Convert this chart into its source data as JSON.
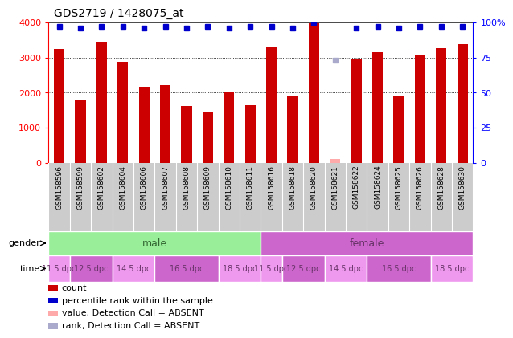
{
  "title": "GDS2719 / 1428075_at",
  "samples": [
    "GSM158596",
    "GSM158599",
    "GSM158602",
    "GSM158604",
    "GSM158606",
    "GSM158607",
    "GSM158608",
    "GSM158609",
    "GSM158610",
    "GSM158611",
    "GSM158616",
    "GSM158618",
    "GSM158620",
    "GSM158621",
    "GSM158622",
    "GSM158624",
    "GSM158625",
    "GSM158626",
    "GSM158628",
    "GSM158630"
  ],
  "bar_values": [
    3250,
    1800,
    3450,
    2870,
    2180,
    2210,
    1620,
    1430,
    2040,
    1640,
    3280,
    1930,
    3980,
    110,
    2940,
    3160,
    1900,
    3090,
    3270,
    3380
  ],
  "bar_absent": [
    false,
    false,
    false,
    false,
    false,
    false,
    false,
    false,
    false,
    false,
    false,
    false,
    false,
    true,
    false,
    false,
    false,
    false,
    false,
    false
  ],
  "percentile_values": [
    97,
    96,
    97,
    97,
    96,
    97,
    96,
    97,
    96,
    97,
    97,
    96,
    100,
    73,
    96,
    97,
    96,
    97,
    97,
    97
  ],
  "percentile_absent": [
    false,
    false,
    false,
    false,
    false,
    false,
    false,
    false,
    false,
    false,
    false,
    false,
    false,
    true,
    false,
    false,
    false,
    false,
    false,
    false
  ],
  "bar_color": "#cc0000",
  "bar_absent_color": "#ffaaaa",
  "percentile_color": "#0000cc",
  "percentile_absent_color": "#aaaacc",
  "ylim_left": [
    0,
    4000
  ],
  "ylim_right": [
    0,
    100
  ],
  "yticks_left": [
    0,
    1000,
    2000,
    3000,
    4000
  ],
  "yticks_right": [
    0,
    25,
    50,
    75,
    100
  ],
  "ytick_labels_right": [
    "0",
    "25",
    "50",
    "75",
    "100%"
  ],
  "gender_groups": [
    {
      "label": "male",
      "start": 0,
      "end": 10,
      "color": "#99ee99",
      "text_color": "#336633"
    },
    {
      "label": "female",
      "start": 10,
      "end": 20,
      "color": "#cc66cc",
      "text_color": "#663366"
    }
  ],
  "time_labels": [
    "11.5 dpc",
    "12.5 dpc",
    "14.5 dpc",
    "16.5 dpc",
    "18.5 dpc",
    "11.5 dpc",
    "12.5 dpc",
    "14.5 dpc",
    "16.5 dpc",
    "18.5 dpc"
  ],
  "time_boundaries": [
    0,
    1,
    3,
    5,
    8,
    10,
    11,
    13,
    15,
    18,
    20
  ],
  "time_colors": [
    "#ee99ee",
    "#cc66cc",
    "#ee99ee",
    "#cc66cc",
    "#ee99ee",
    "#ee99ee",
    "#cc66cc",
    "#ee99ee",
    "#cc66cc",
    "#ee99ee"
  ],
  "time_text_color": "#663366",
  "legend_items": [
    {
      "color": "#cc0000",
      "label": "count"
    },
    {
      "color": "#0000cc",
      "label": "percentile rank within the sample"
    },
    {
      "color": "#ffaaaa",
      "label": "value, Detection Call = ABSENT"
    },
    {
      "color": "#aaaacc",
      "label": "rank, Detection Call = ABSENT"
    }
  ],
  "sample_label_bg": "#cccccc",
  "sample_divider_color": "#ffffff",
  "background_color": "#ffffff",
  "bar_width": 0.5,
  "title_fontsize": 10,
  "axis_fontsize": 8,
  "sample_fontsize": 6.5,
  "gender_fontsize": 9,
  "time_fontsize": 8,
  "legend_fontsize": 8
}
